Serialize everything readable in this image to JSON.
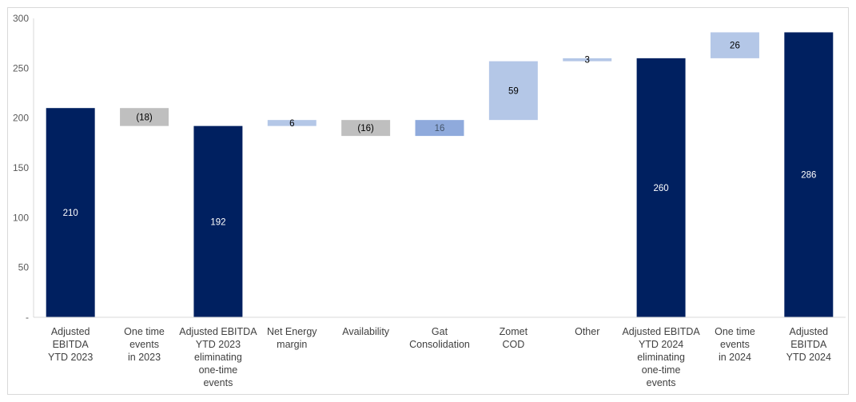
{
  "chart_data": {
    "type": "bar",
    "subtype": "waterfall",
    "title": "",
    "xlabel": "",
    "ylabel": "",
    "ylim": [
      0,
      300
    ],
    "yticks": [
      "300",
      "250",
      "200",
      "150",
      "100",
      "50",
      "-"
    ],
    "grid": false,
    "legend": "none",
    "bars": [
      {
        "category": "Adjusted EBITDA YTD 2023",
        "lines": [
          "Adjusted",
          "EBITDA",
          "YTD 2023"
        ],
        "kind": "total",
        "start": 0,
        "end": 210,
        "label": "210",
        "color": "#002060",
        "label_color": "#ffffff",
        "label_pos": "mid"
      },
      {
        "category": "One time events in 2023",
        "lines": [
          "One time",
          "events",
          "in 2023"
        ],
        "kind": "delta",
        "start": 210,
        "end": 192,
        "label": "(18)",
        "color": "#bfbfbf",
        "label_color": "#000000",
        "label_pos": "mid"
      },
      {
        "category": "Adjusted EBITDA YTD 2023 eliminating one-time events",
        "lines": [
          "Adjusted EBITDA",
          "YTD 2023",
          "eliminating",
          "one-time",
          "events"
        ],
        "kind": "total",
        "start": 0,
        "end": 192,
        "label": "192",
        "color": "#002060",
        "label_color": "#ffffff",
        "label_pos": "mid"
      },
      {
        "category": "Net Energy margin",
        "lines": [
          "Net Energy",
          "margin"
        ],
        "kind": "delta",
        "start": 192,
        "end": 198,
        "label": "6",
        "color": "#b4c7e7",
        "label_color": "#000000",
        "label_pos": "mid"
      },
      {
        "category": "Availability",
        "lines": [
          "Availability"
        ],
        "kind": "delta",
        "start": 198,
        "end": 182,
        "label": "(16)",
        "color": "#bfbfbf",
        "label_color": "#000000",
        "label_pos": "mid"
      },
      {
        "category": "Gat Consolidation",
        "lines": [
          "Gat",
          "Consolidation"
        ],
        "kind": "delta",
        "start": 182,
        "end": 198,
        "label": "16",
        "color": "#8faadc",
        "label_color": "#44546a",
        "label_pos": "mid"
      },
      {
        "category": "Zomet COD",
        "lines": [
          "Zomet",
          "COD"
        ],
        "kind": "delta",
        "start": 198,
        "end": 257,
        "label": "59",
        "color": "#b4c7e7",
        "label_color": "#000000",
        "label_pos": "mid"
      },
      {
        "category": "Other",
        "lines": [
          "Other"
        ],
        "kind": "delta",
        "start": 257,
        "end": 260,
        "label": "3",
        "color": "#b4c7e7",
        "label_color": "#000000",
        "label_pos": "mid"
      },
      {
        "category": "Adjusted EBITDA YTD 2024 eliminating one-time events",
        "lines": [
          "Adjusted EBITDA",
          "YTD 2024",
          "eliminating",
          "one-time",
          "events"
        ],
        "kind": "total",
        "start": 0,
        "end": 260,
        "label": "260",
        "color": "#002060",
        "label_color": "#ffffff",
        "label_pos": "mid"
      },
      {
        "category": "One time events in 2024",
        "lines": [
          "One time",
          "events",
          "in 2024"
        ],
        "kind": "delta",
        "start": 260,
        "end": 286,
        "label": "26",
        "color": "#b4c7e7",
        "label_color": "#000000",
        "label_pos": "mid"
      },
      {
        "category": "Adjusted EBITDA YTD 2024",
        "lines": [
          "Adjusted",
          "EBITDA",
          "YTD 2024"
        ],
        "kind": "total",
        "start": 0,
        "end": 286,
        "label": "286",
        "color": "#002060",
        "label_color": "#ffffff",
        "label_pos": "mid"
      }
    ],
    "axis_color": "#d9d9d9"
  }
}
